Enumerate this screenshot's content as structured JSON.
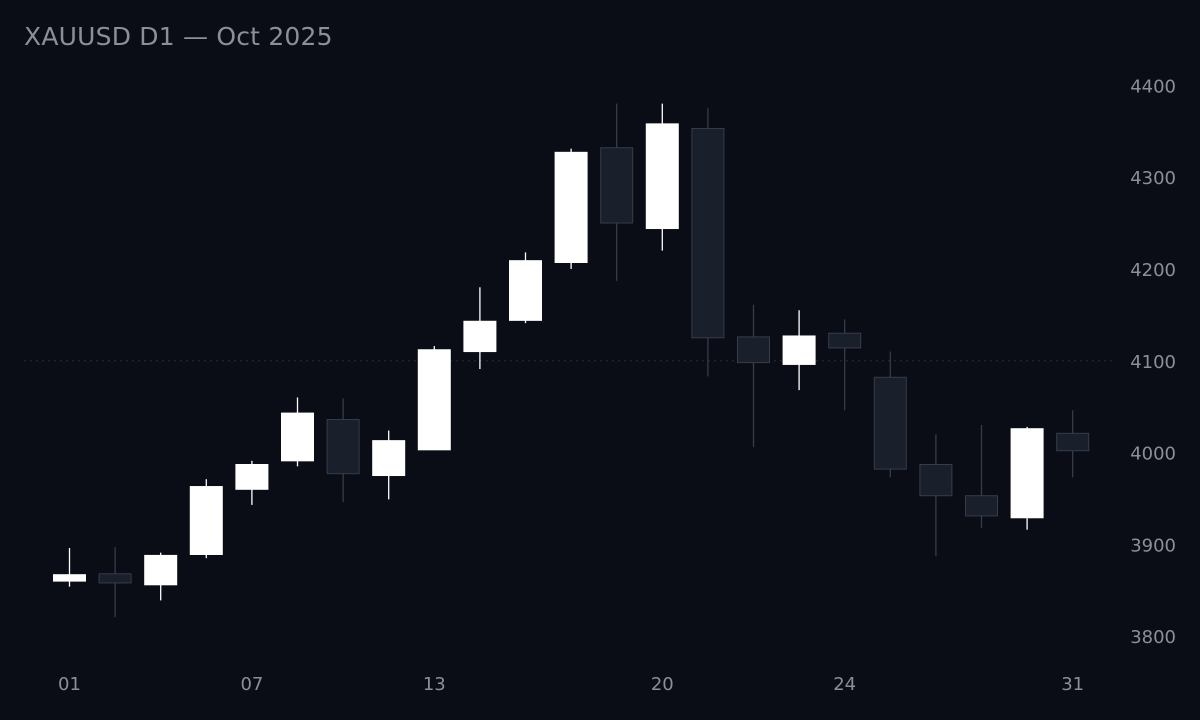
{
  "chart_data": {
    "type": "candlestick",
    "title": "XAUUSD D1 — Oct 2025",
    "x_tick_labels": [
      "01",
      "07",
      "13",
      "20",
      "24",
      "31"
    ],
    "x_tick_candle_index": [
      0,
      4,
      8,
      13,
      17,
      22
    ],
    "y_ticks": [
      3800,
      3900,
      4000,
      4100,
      4200,
      4300,
      4400
    ],
    "ylim": [
      3773,
      4433
    ],
    "reference_line": 4100,
    "colors": {
      "up": "#ffffff",
      "down": "#1a1f2c",
      "down_edge": "#363c4a",
      "grid": "#262b36",
      "text": "#8b8f99",
      "background": "#0a0d15"
    },
    "candles": [
      {
        "o": 3860,
        "h": 3896,
        "l": 3854,
        "c": 3867
      },
      {
        "o": 3868,
        "h": 3897,
        "l": 3821,
        "c": 3858
      },
      {
        "o": 3856,
        "h": 3891,
        "l": 3839,
        "c": 3888
      },
      {
        "o": 3889,
        "h": 3971,
        "l": 3885,
        "c": 3963
      },
      {
        "o": 3960,
        "h": 3991,
        "l": 3943,
        "c": 3987
      },
      {
        "o": 3991,
        "h": 4060,
        "l": 3985,
        "c": 4043
      },
      {
        "o": 4036,
        "h": 4059,
        "l": 3946,
        "c": 3977
      },
      {
        "o": 3975,
        "h": 4024,
        "l": 3949,
        "c": 4013
      },
      {
        "o": 4003,
        "h": 4116,
        "l": 4003,
        "c": 4112
      },
      {
        "o": 4110,
        "h": 4180,
        "l": 4091,
        "c": 4143
      },
      {
        "o": 4144,
        "h": 4218,
        "l": 4141,
        "c": 4209
      },
      {
        "o": 4207,
        "h": 4331,
        "l": 4200,
        "c": 4327
      },
      {
        "o": 4332,
        "h": 4380,
        "l": 4187,
        "c": 4250
      },
      {
        "o": 4244,
        "h": 4380,
        "l": 4220,
        "c": 4358
      },
      {
        "o": 4353,
        "h": 4375,
        "l": 4083,
        "c": 4125
      },
      {
        "o": 4126,
        "h": 4161,
        "l": 4006,
        "c": 4098
      },
      {
        "o": 4096,
        "h": 4155,
        "l": 4068,
        "c": 4127
      },
      {
        "o": 4130,
        "h": 4145,
        "l": 4046,
        "c": 4114
      },
      {
        "o": 4082,
        "h": 4110,
        "l": 3973,
        "c": 3982
      },
      {
        "o": 3987,
        "h": 4020,
        "l": 3887,
        "c": 3953
      },
      {
        "o": 3953,
        "h": 4030,
        "l": 3918,
        "c": 3931
      },
      {
        "o": 3929,
        "h": 4028,
        "l": 3916,
        "c": 4026
      },
      {
        "o": 4021,
        "h": 4046,
        "l": 3973,
        "c": 4002
      }
    ]
  }
}
